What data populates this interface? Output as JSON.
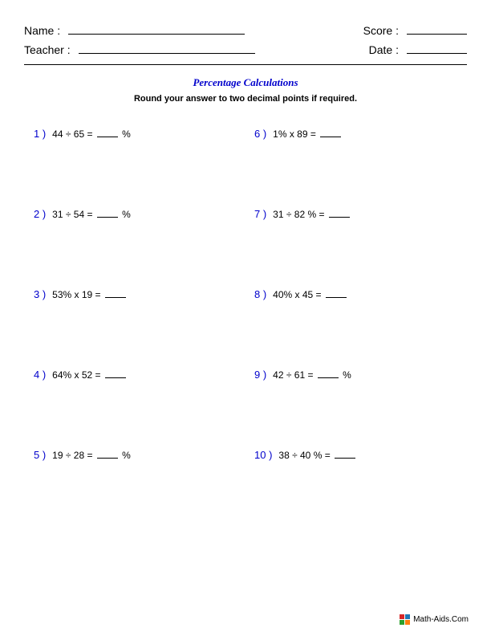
{
  "header": {
    "name_label": "Name :",
    "teacher_label": "Teacher :",
    "score_label": "Score :",
    "date_label": "Date :"
  },
  "title": "Percentage Calculations",
  "subtitle": "Round your answer to two decimal points if required.",
  "problems": [
    {
      "num": "1 )",
      "text_before": "44  ÷  65  = ",
      "text_after": " %"
    },
    {
      "num": "6 )",
      "text_before": "1%  x  89  = ",
      "text_after": ""
    },
    {
      "num": "2 )",
      "text_before": "31  ÷  54  = ",
      "text_after": " %"
    },
    {
      "num": "7 )",
      "text_before": "31  ÷  82 %  = ",
      "text_after": ""
    },
    {
      "num": "3 )",
      "text_before": "53%  x  19  = ",
      "text_after": ""
    },
    {
      "num": "8 )",
      "text_before": "40%  x  45  = ",
      "text_after": ""
    },
    {
      "num": "4 )",
      "text_before": "64%  x  52  = ",
      "text_after": ""
    },
    {
      "num": "9 )",
      "text_before": "42  ÷  61  = ",
      "text_after": " %"
    },
    {
      "num": "5 )",
      "text_before": "19  ÷  28  = ",
      "text_after": " %"
    },
    {
      "num": "10 )",
      "text_before": "38  ÷  40 %  = ",
      "text_after": ""
    }
  ],
  "footer": "Math-Aids.Com",
  "colors": {
    "accent": "#0000cc",
    "text": "#000000",
    "background": "#ffffff"
  }
}
